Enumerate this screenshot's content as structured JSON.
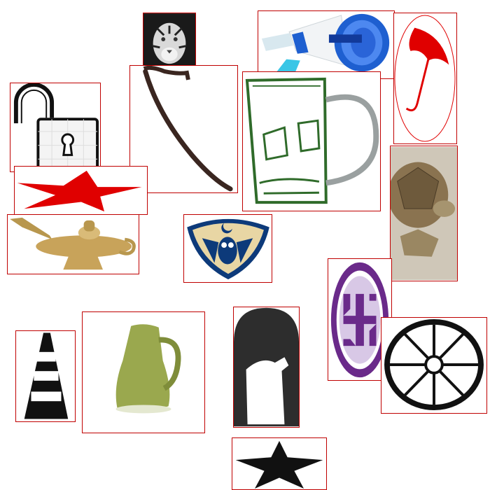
{
  "tiles": [
    {
      "id": "tiger",
      "icon": "tiger-photo"
    },
    {
      "id": "padlock",
      "icon": "unlocked-padlock-icon"
    },
    {
      "id": "cane",
      "icon": "walking-cane"
    },
    {
      "id": "megaphone",
      "icon": "megaphone-icon"
    },
    {
      "id": "mug",
      "icon": "glass-mug"
    },
    {
      "id": "umbrella",
      "icon": "umbrella-logo"
    },
    {
      "id": "red-star",
      "icon": "red-star-icon"
    },
    {
      "id": "oil-lamp",
      "icon": "brass-oil-lamp"
    },
    {
      "id": "owl-shield",
      "icon": "owl-crest-shield"
    },
    {
      "id": "tortoise",
      "icon": "tortoise-photo"
    },
    {
      "id": "swastika",
      "icon": "swastika-emblem"
    },
    {
      "id": "ladder-a",
      "icon": "ladder-letter-a"
    },
    {
      "id": "pitcher",
      "icon": "green-pitcher"
    },
    {
      "id": "sheep-arch",
      "icon": "sheep-silhouette-arch"
    },
    {
      "id": "wheel",
      "icon": "spoked-wheel-icon"
    },
    {
      "id": "black-star",
      "icon": "black-star-icon"
    }
  ],
  "colors": {
    "frame": "#c00000",
    "red": "#e00000",
    "purple": "#6a2a8a",
    "navy": "#0d3a7a",
    "gold": "#c8a35a",
    "green": "#2f6b2a",
    "olive": "#9aa84e"
  }
}
